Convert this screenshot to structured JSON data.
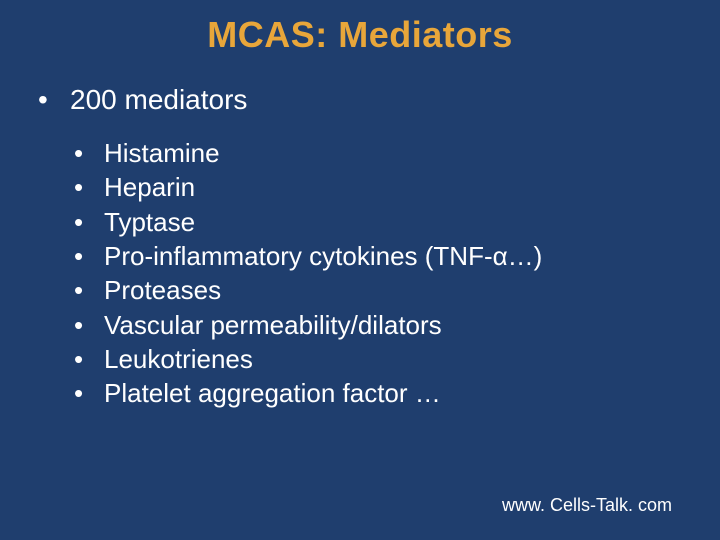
{
  "slide": {
    "title": "MCAS: Mediators",
    "title_color": "#e8a63a",
    "background_color": "#1f3e6e",
    "text_color": "#ffffff",
    "title_fontsize": 36,
    "body_fontsize": 28,
    "sub_fontsize": 26,
    "main_item": "200 mediators",
    "sub_items": [
      "Histamine",
      "Heparin",
      "Typtase",
      "Pro-inflammatory cytokines (TNF-α…)",
      "Proteases",
      "Vascular permeability/dilators",
      "Leukotrienes",
      "Platelet aggregation factor …"
    ],
    "footer": "www. Cells-Talk. com"
  }
}
